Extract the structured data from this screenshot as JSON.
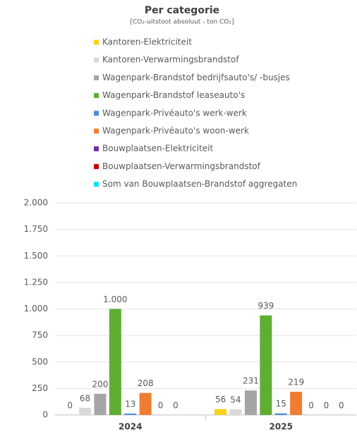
{
  "chart_data": {
    "type": "bar",
    "title": "Per categorie",
    "subtitle": "[CO₂-uitstoot absoluut - ton CO₂]",
    "categories": [
      "2024",
      "2025"
    ],
    "series": [
      {
        "name": "Kantoren-Elektriciteit",
        "color": "#f7d217",
        "values": [
          0,
          56
        ]
      },
      {
        "name": "Kantoren-Verwarmingsbrandstof",
        "color": "#d9d9d9",
        "values": [
          68,
          54
        ]
      },
      {
        "name": "Wagenpark-Brandstof bedrijfsauto's/ -busjes",
        "color": "#a5a5a5",
        "values": [
          200,
          231
        ]
      },
      {
        "name": "Wagenpark-Brandstof leaseauto's",
        "color": "#5fae32",
        "values": [
          1000,
          939
        ],
        "value_labels": [
          "1.000",
          "939"
        ]
      },
      {
        "name": "Wagenpark-Privéauto's werk-werk",
        "color": "#4a8fd8",
        "values": [
          13,
          15
        ]
      },
      {
        "name": "Wagenpark-Privéauto's woon-werk",
        "color": "#ee7d31",
        "values": [
          208,
          219
        ]
      },
      {
        "name": "Bouwplaatsen-Elektriciteit",
        "color": "#7030a0",
        "values": [
          0,
          0
        ]
      },
      {
        "name": "Bouwplaatsen-Verwarmingsbrandstof",
        "color": "#c00000",
        "values": [
          0,
          0
        ]
      },
      {
        "name": "Som van Bouwplaatsen-Brandstof aggregaten",
        "color": "#11e0f5",
        "values": [
          null,
          0
        ]
      }
    ],
    "ylim": [
      0,
      2000
    ],
    "yticks": [
      0,
      250,
      500,
      750,
      {
        "value": 1000,
        "label": "1.000"
      },
      {
        "value": 1250,
        "label": "1.250"
      },
      {
        "value": 1500,
        "label": "1.500"
      },
      {
        "value": 1750,
        "label": "1.750"
      },
      {
        "value": 2000,
        "label": "2.000"
      }
    ],
    "grid": true,
    "legend": "top"
  }
}
